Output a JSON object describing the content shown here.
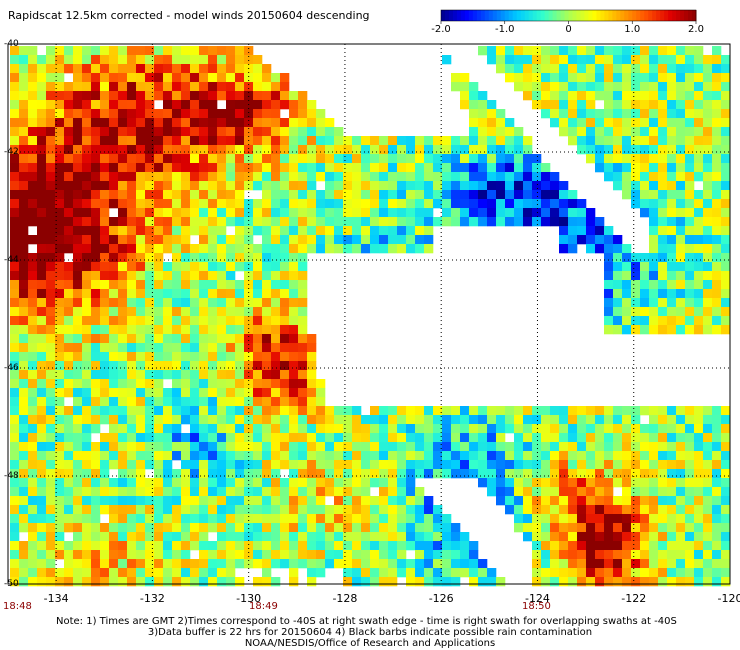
{
  "title": "Rapidscat 12.5km corrected - model winds 20150604 descending",
  "colorbar": {
    "min": -2.0,
    "max": 2.0,
    "tick_labels": [
      "-2.0",
      "-1.0",
      "0",
      "1.0",
      "2.0"
    ],
    "tick_values": [
      -2.0,
      -1.0,
      0,
      1.0,
      2.0
    ],
    "colors": [
      "#00008b",
      "#0000ff",
      "#0066ff",
      "#00ccff",
      "#33ffcc",
      "#aaff55",
      "#ffff00",
      "#ffaa00",
      "#ff5500",
      "#e00000",
      "#8b0000"
    ]
  },
  "map": {
    "lon_min": -135,
    "lon_max": -120,
    "lat_top": -40,
    "lat_bottom": -50,
    "x_tick_values": [
      -134,
      -132,
      -130,
      -128,
      -126,
      -124,
      -122,
      -120
    ],
    "x_tick_labels": [
      "-134",
      "-132",
      "-130",
      "-128",
      "-126",
      "-124",
      "-122",
      "-120"
    ],
    "y_tick_values": [
      -40,
      -42,
      -44,
      -46,
      -48,
      -50
    ],
    "y_tick_labels": [
      "-40",
      "-42",
      "-44",
      "-46",
      "-48",
      "-50"
    ],
    "grid": true,
    "grid_style": "dotted",
    "background": "#ffffff"
  },
  "time_labels": [
    {
      "text": "18:48",
      "lon": -135
    },
    {
      "text": "18:49",
      "lon": -130
    },
    {
      "text": "18:50",
      "lon": -124
    }
  ],
  "notes": [
    "Note: 1) Times are GMT 2)Times correspond to -40S at right swath edge - time is right swath for overlapping swaths at -40S",
    "3)Data buffer is 22 hrs for 20150604 4) Black barbs indicate possible rain contamination",
    "NOAA/NESDIS/Office of Research and Applications"
  ]
}
